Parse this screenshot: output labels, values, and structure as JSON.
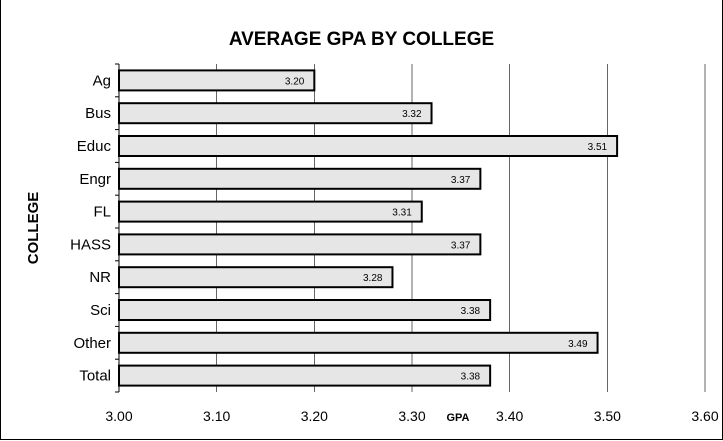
{
  "chart_data": {
    "type": "bar",
    "orientation": "horizontal",
    "title": "AVERAGE GPA BY COLLEGE",
    "xlabel": "GPA",
    "ylabel": "COLLEGE",
    "categories": [
      "Ag",
      "Bus",
      "Educ",
      "Engr",
      "FL",
      "HASS",
      "NR",
      "Sci",
      "Other",
      "Total"
    ],
    "values": [
      3.2,
      3.32,
      3.51,
      3.37,
      3.31,
      3.37,
      3.28,
      3.38,
      3.49,
      3.38
    ],
    "data_labels": [
      "3.20",
      "3.32",
      "3.51",
      "3.37",
      "3.31",
      "3.37",
      "3.28",
      "3.38",
      "3.49",
      "3.38"
    ],
    "xlim": [
      3.0,
      3.6
    ],
    "xticks": [
      "3.00",
      "3.10",
      "3.20",
      "3.30",
      "3.40",
      "3.50",
      "3.60"
    ],
    "grid": "vertical",
    "legend": "none",
    "colors": {
      "bar_fill": "#e6e6e6",
      "bar_stroke": "#000000",
      "grid": "#000000"
    }
  }
}
